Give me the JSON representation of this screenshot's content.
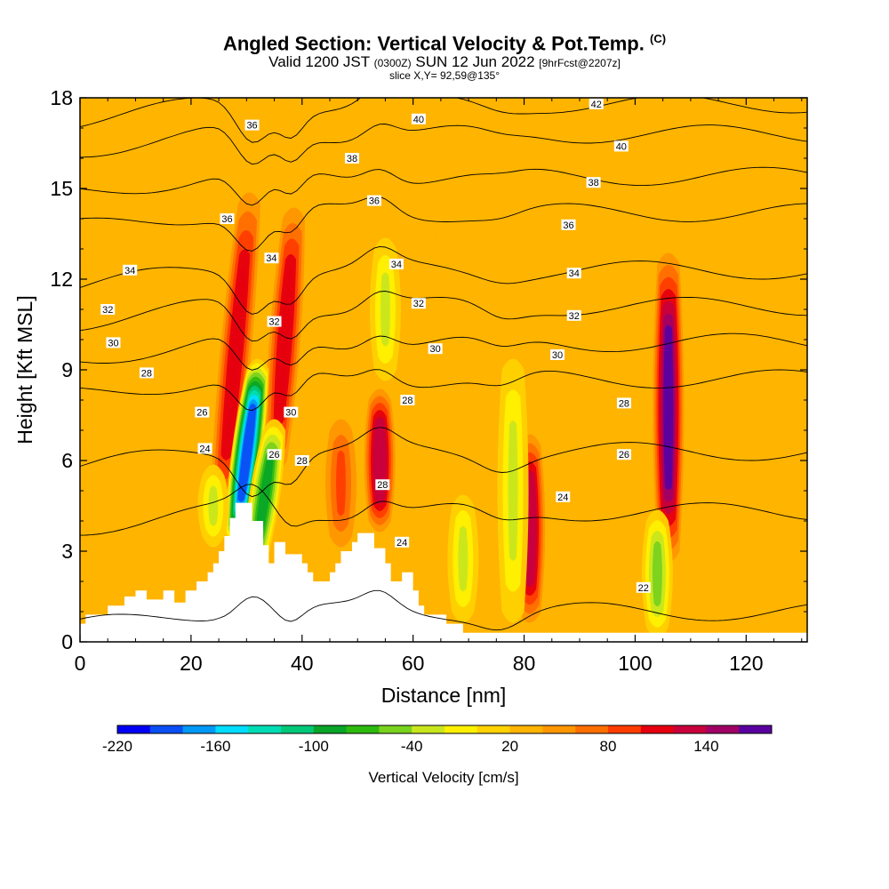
{
  "title": {
    "main": "Angled Section: Vertical Velocity & Pot.Temp.",
    "main_suffix": "(C)",
    "valid_prefix": "Valid 1200 JST",
    "valid_z": "(0300Z)",
    "valid_date": "SUN 12 Jun 2022",
    "valid_fcst": "[9hrFcst@2207z]",
    "slice": "slice X,Y= 92,59@135°"
  },
  "chart_data": {
    "type": "heatmap",
    "xlabel": "Distance [nm]",
    "ylabel": "Height [Kft MSL]",
    "xlim": [
      0,
      131
    ],
    "ylim": [
      0,
      18
    ],
    "x_ticks": [
      0,
      20,
      40,
      60,
      80,
      100,
      120
    ],
    "y_ticks": [
      0,
      3,
      6,
      9,
      12,
      15,
      18
    ],
    "background_value": 20,
    "colorbar": {
      "label": "Vertical Velocity [cm/s]",
      "tick_labels": [
        "-220",
        "-160",
        "-100",
        "-40",
        "20",
        "80",
        "140"
      ],
      "tick_values": [
        -220,
        -160,
        -100,
        -40,
        20,
        80,
        140
      ],
      "bins": [
        -220,
        -200,
        -180,
        -160,
        -140,
        -120,
        -100,
        -80,
        -60,
        -40,
        -20,
        0,
        20,
        40,
        60,
        80,
        100,
        120,
        140,
        160
      ],
      "colors": [
        "#0000f5",
        "#0a4ff5",
        "#0099f5",
        "#00ddff",
        "#00dcb4",
        "#00c878",
        "#0aa528",
        "#2dba0f",
        "#78d21e",
        "#c8e61e",
        "#fff000",
        "#ffd200",
        "#ffb400",
        "#ff9600",
        "#ff6e00",
        "#ff3c00",
        "#e6000f",
        "#c8003c",
        "#a00064",
        "#5a00a0"
      ]
    },
    "vertical_velocity_features": [
      {
        "x": 30.5,
        "ybot": 4.5,
        "ytop": 14.5,
        "value": 110,
        "tilt": -0.5
      },
      {
        "x": 38.5,
        "ybot": 6.0,
        "ytop": 14.0,
        "value": 110,
        "tilt": -0.4
      },
      {
        "x": 32.0,
        "ybot": 3.5,
        "ytop": 9.0,
        "value": -200,
        "tilt": -0.7
      },
      {
        "x": 35.0,
        "ybot": 2.5,
        "ytop": 7.0,
        "value": -90,
        "tilt": -0.8
      },
      {
        "x": 47.0,
        "ybot": 3.5,
        "ytop": 7.0,
        "value": 80,
        "tilt": 0
      },
      {
        "x": 54.0,
        "ybot": 4.0,
        "ytop": 8.0,
        "value": 130,
        "tilt": 0
      },
      {
        "x": 81.0,
        "ybot": 1.0,
        "ytop": 6.5,
        "value": 130,
        "tilt": 0
      },
      {
        "x": 106.0,
        "ybot": 3.0,
        "ytop": 12.5,
        "value": 160,
        "tilt": 0
      },
      {
        "x": 78.0,
        "ybot": 1.0,
        "ytop": 9.0,
        "value": -40,
        "tilt": 0
      },
      {
        "x": 104.0,
        "ybot": 0.5,
        "ytop": 4.0,
        "value": -45,
        "tilt": 0
      },
      {
        "x": 55.0,
        "ybot": 9.0,
        "ytop": 13.0,
        "value": -40,
        "tilt": 0
      },
      {
        "x": 24.0,
        "ybot": 3.5,
        "ytop": 5.5,
        "value": -40,
        "tilt": 0
      },
      {
        "x": 69.0,
        "ybot": 1.0,
        "ytop": 4.5,
        "value": -30,
        "tilt": 0
      }
    ],
    "terrain": {
      "x": [
        0,
        1,
        1,
        5,
        5,
        8,
        8,
        10,
        10,
        12,
        12,
        15,
        15,
        17,
        17,
        19,
        19,
        21,
        21,
        23,
        23,
        24,
        24,
        25,
        25,
        26,
        26,
        27,
        27,
        28,
        28,
        31,
        31,
        33,
        33,
        34,
        34,
        35,
        35,
        37,
        37,
        40,
        40,
        41,
        41,
        42,
        42,
        45,
        45,
        46,
        46,
        47,
        47,
        49,
        49,
        50,
        50,
        53,
        53,
        55,
        55,
        56,
        56,
        58,
        58,
        60,
        60,
        61,
        61,
        62,
        62,
        66,
        66,
        69,
        69,
        131
      ],
      "y": [
        0.6,
        0.6,
        0.9,
        0.9,
        1.2,
        1.2,
        1.5,
        1.5,
        1.7,
        1.7,
        1.4,
        1.4,
        1.7,
        1.7,
        1.3,
        1.3,
        1.7,
        1.7,
        2.0,
        2.0,
        2.3,
        2.3,
        2.6,
        2.6,
        3.0,
        3.0,
        3.5,
        3.5,
        4.1,
        4.1,
        4.6,
        4.6,
        4.0,
        4.0,
        3.2,
        3.2,
        2.6,
        2.6,
        3.3,
        3.3,
        2.9,
        2.9,
        2.6,
        2.6,
        2.3,
        2.3,
        2.0,
        2.0,
        2.3,
        2.3,
        2.6,
        2.6,
        3.0,
        3.0,
        3.3,
        3.3,
        3.6,
        3.6,
        3.1,
        3.1,
        2.6,
        2.6,
        2.0,
        2.0,
        2.3,
        2.3,
        1.7,
        1.7,
        1.2,
        1.2,
        0.9,
        0.9,
        0.6,
        0.6,
        0.3,
        0.3
      ]
    },
    "theta_contours": [
      {
        "label": "22",
        "base_y": 1.0
      },
      {
        "label": "24",
        "base_y": 4.3
      },
      {
        "label": "26",
        "base_y": 6.3
      },
      {
        "label": "28",
        "base_y": 8.7
      },
      {
        "label": "30",
        "base_y": 9.9
      },
      {
        "label": "32",
        "base_y": 11.1
      },
      {
        "label": "34",
        "base_y": 12.3
      },
      {
        "label": "36",
        "base_y": 14.2
      },
      {
        "label": "38",
        "base_y": 15.4
      },
      {
        "label": "40",
        "base_y": 16.8
      },
      {
        "label": "42",
        "base_y": 17.8
      }
    ],
    "contour_labels": [
      {
        "x": 31.0,
        "y": 17.1,
        "text": "36"
      },
      {
        "x": 61.0,
        "y": 17.3,
        "text": "40"
      },
      {
        "x": 93.0,
        "y": 17.8,
        "text": "42"
      },
      {
        "x": 49.0,
        "y": 16.0,
        "text": "38"
      },
      {
        "x": 97.5,
        "y": 16.4,
        "text": "40"
      },
      {
        "x": 92.5,
        "y": 15.2,
        "text": "38"
      },
      {
        "x": 26.5,
        "y": 14.0,
        "text": "36"
      },
      {
        "x": 53.0,
        "y": 14.6,
        "text": "36"
      },
      {
        "x": 88.0,
        "y": 13.8,
        "text": "36"
      },
      {
        "x": 9.0,
        "y": 12.3,
        "text": "34"
      },
      {
        "x": 34.5,
        "y": 12.7,
        "text": "34"
      },
      {
        "x": 57.0,
        "y": 12.5,
        "text": "34"
      },
      {
        "x": 89.0,
        "y": 12.2,
        "text": "34"
      },
      {
        "x": 5.0,
        "y": 11.0,
        "text": "32"
      },
      {
        "x": 61.0,
        "y": 11.2,
        "text": "32"
      },
      {
        "x": 89.0,
        "y": 10.8,
        "text": "32"
      },
      {
        "x": 35.0,
        "y": 10.6,
        "text": "32"
      },
      {
        "x": 6.0,
        "y": 9.9,
        "text": "30"
      },
      {
        "x": 64.0,
        "y": 9.7,
        "text": "30"
      },
      {
        "x": 86.0,
        "y": 9.5,
        "text": "30"
      },
      {
        "x": 12.0,
        "y": 8.9,
        "text": "28"
      },
      {
        "x": 59.0,
        "y": 8.0,
        "text": "28"
      },
      {
        "x": 98.0,
        "y": 7.9,
        "text": "28"
      },
      {
        "x": 38.0,
        "y": 7.6,
        "text": "30"
      },
      {
        "x": 22.0,
        "y": 7.6,
        "text": "26"
      },
      {
        "x": 22.5,
        "y": 6.4,
        "text": "24"
      },
      {
        "x": 35.0,
        "y": 6.2,
        "text": "26"
      },
      {
        "x": 40.0,
        "y": 6.0,
        "text": "28"
      },
      {
        "x": 98.0,
        "y": 6.2,
        "text": "26"
      },
      {
        "x": 54.5,
        "y": 5.2,
        "text": "28"
      },
      {
        "x": 87.0,
        "y": 4.8,
        "text": "24"
      },
      {
        "x": 58.0,
        "y": 3.3,
        "text": "24"
      },
      {
        "x": 101.5,
        "y": 1.8,
        "text": "22"
      }
    ]
  }
}
